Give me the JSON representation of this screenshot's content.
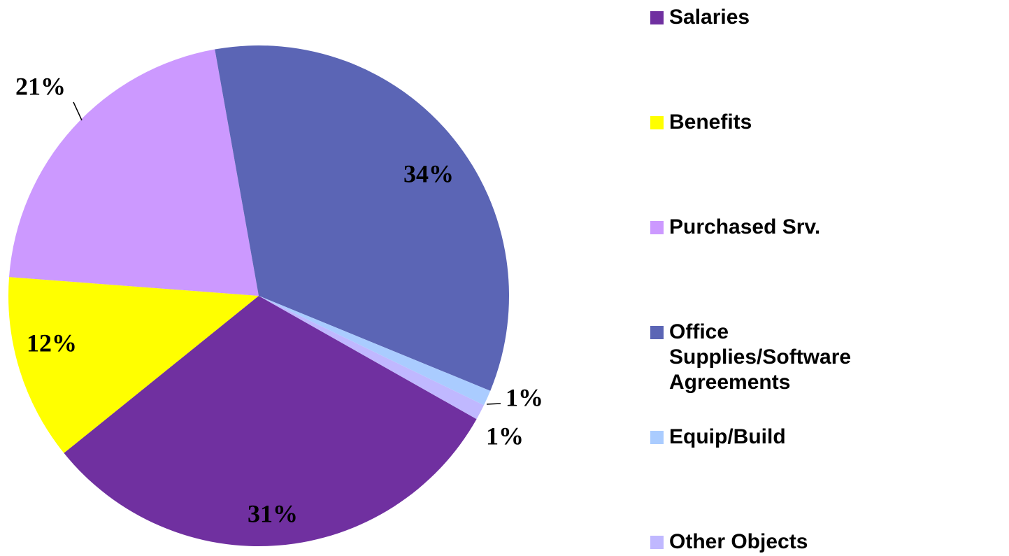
{
  "chart_data": {
    "type": "pie",
    "categories": [
      "Salaries",
      "Benefits",
      "Purchased Srv.",
      "Office Supplies/Software Agreements",
      "Equip/Build",
      "Other Objects"
    ],
    "values": [
      31,
      12,
      21,
      34,
      1,
      1
    ],
    "value_labels": [
      "31%",
      "12%",
      "21%",
      "34%",
      "1%",
      "1%"
    ],
    "colors": [
      "#7030a0",
      "#ffff00",
      "#cc99ff",
      "#5b65b5",
      "#aaccff",
      "#c0b8ff"
    ],
    "legend": "right"
  }
}
